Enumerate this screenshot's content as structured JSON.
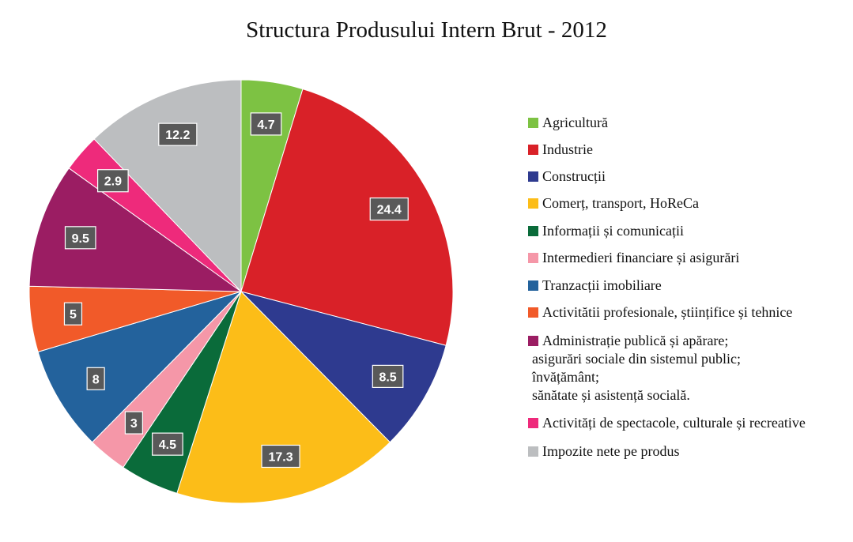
{
  "chart_data": {
    "type": "pie",
    "title": "Structura Produsului Intern Brut - 2012",
    "start_angle": "12 o'clock",
    "direction": "clockwise",
    "legend_position": "right",
    "slices": [
      {
        "label": "Agricultură",
        "value": 4.7,
        "display": "4.7",
        "color": "#7dc243"
      },
      {
        "label": "Industrie",
        "value": 24.4,
        "display": "24.4",
        "color": "#d92128"
      },
      {
        "label": "Construcții",
        "value": 8.5,
        "display": "8.5",
        "color": "#2e3a8f"
      },
      {
        "label": "Comerț, transport, HoReCa",
        "value": 17.3,
        "display": "17.3",
        "color": "#fcbd18"
      },
      {
        "label": "Informații și comunicații",
        "value": 4.5,
        "display": "4.5",
        "color": "#0a6b3a"
      },
      {
        "label": "Intermedieri financiare și asigurări",
        "value": 3,
        "display": "3",
        "color": "#f597a8"
      },
      {
        "label": "Tranzacții imobiliare",
        "value": 8,
        "display": "8",
        "color": "#23629c"
      },
      {
        "label": "Activitătii profesionale, științifice și tehnice",
        "value": 5,
        "display": "5",
        "color": "#f15a29"
      },
      {
        "label": [
          "Administrație publică și apărare;",
          "asigurări sociale din sistemul public;",
          "învățământ;",
          "sănătate și asistență socială."
        ],
        "value": 9.5,
        "display": "9.5",
        "color": "#9b1d63"
      },
      {
        "label": "Activități de spectacole, culturale și recreative",
        "value": 2.9,
        "display": "2.9",
        "color": "#ee2a7b"
      },
      {
        "label": "Impozite nete pe produs",
        "value": 12.2,
        "display": "12.2",
        "color": "#bcbec0"
      }
    ]
  }
}
